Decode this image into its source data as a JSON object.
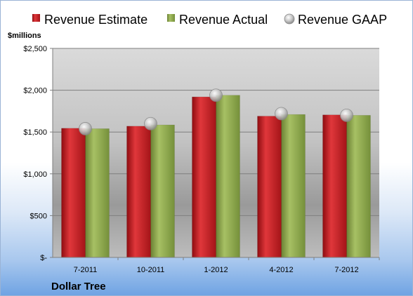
{
  "chart_data": {
    "type": "bar",
    "unit_label": "$millions",
    "company": "Dollar Tree",
    "categories": [
      "7-2011",
      "10-2011",
      "1-2012",
      "4-2012",
      "7-2012"
    ],
    "series": [
      {
        "name": "Revenue Estimate",
        "kind": "bar",
        "color": "#c0171b",
        "values": [
          1545,
          1570,
          1920,
          1690,
          1705
        ]
      },
      {
        "name": "Revenue Actual",
        "kind": "bar",
        "color": "#8fa84f",
        "values": [
          1540,
          1585,
          1940,
          1710,
          1700
        ]
      },
      {
        "name": "Revenue GAAP",
        "kind": "marker",
        "color": "#c8c8c8",
        "values": [
          1540,
          1600,
          1940,
          1720,
          1700
        ]
      }
    ],
    "ylim": [
      0,
      2500
    ],
    "y_ticks": [
      {
        "value": 0,
        "label": "$-"
      },
      {
        "value": 500,
        "label": "$500"
      },
      {
        "value": 1000,
        "label": "$1,000"
      },
      {
        "value": 1500,
        "label": "$1,500"
      },
      {
        "value": 2000,
        "label": "$2,000"
      },
      {
        "value": 2500,
        "label": "$2,500"
      }
    ],
    "grid": true,
    "legend_position": "top"
  }
}
